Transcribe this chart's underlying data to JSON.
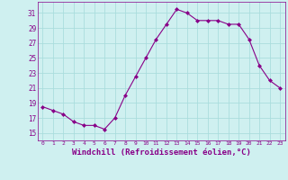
{
  "x": [
    0,
    1,
    2,
    3,
    4,
    5,
    6,
    7,
    8,
    9,
    10,
    11,
    12,
    13,
    14,
    15,
    16,
    17,
    18,
    19,
    20,
    21,
    22,
    23
  ],
  "y": [
    18.5,
    18.0,
    17.5,
    16.5,
    16.0,
    16.0,
    15.5,
    17.0,
    20.0,
    22.5,
    25.0,
    27.5,
    29.5,
    31.5,
    31.0,
    30.0,
    30.0,
    30.0,
    29.5,
    29.5,
    27.5,
    24.0,
    22.0,
    21.0
  ],
  "line_color": "#880088",
  "marker": "D",
  "marker_size": 2.0,
  "bg_color": "#cff0f0",
  "grid_color": "#aadddd",
  "xlabel": "Windchill (Refroidissement éolien,°C)",
  "xlabel_fontsize": 6.5,
  "ylabel_major_ticks": [
    15,
    17,
    19,
    21,
    23,
    25,
    27,
    29,
    31
  ],
  "ylim": [
    14.0,
    32.5
  ],
  "xlim": [
    -0.5,
    23.5
  ],
  "xtick_labels": [
    "0",
    "1",
    "2",
    "3",
    "4",
    "5",
    "6",
    "7",
    "8",
    "9",
    "10",
    "11",
    "12",
    "13",
    "14",
    "15",
    "16",
    "17",
    "18",
    "19",
    "20",
    "21",
    "22",
    "23"
  ]
}
